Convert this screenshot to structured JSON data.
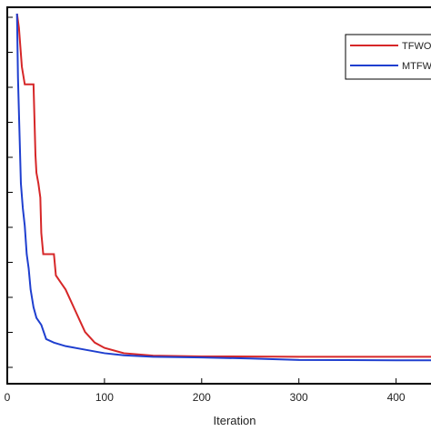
{
  "chart_data": {
    "type": "line",
    "title": "",
    "xlabel": "Iteration",
    "ylabel": "",
    "xlim": [
      0,
      460
    ],
    "ylim": [
      0,
      100
    ],
    "xticks": [
      0,
      100,
      200,
      300,
      400
    ],
    "grid": false,
    "legend": {
      "placement": "top-right"
    },
    "series": [
      {
        "name": "TFWO",
        "color": "#d62728",
        "points": [
          [
            10,
            100
          ],
          [
            12,
            96
          ],
          [
            15,
            85
          ],
          [
            18,
            80
          ],
          [
            27,
            80
          ],
          [
            29,
            60
          ],
          [
            30,
            55
          ],
          [
            32,
            52
          ],
          [
            34,
            48
          ],
          [
            35,
            38
          ],
          [
            37,
            32
          ],
          [
            48,
            32
          ],
          [
            50,
            26
          ],
          [
            55,
            24
          ],
          [
            60,
            22
          ],
          [
            65,
            19
          ],
          [
            70,
            16
          ],
          [
            75,
            13
          ],
          [
            80,
            10
          ],
          [
            90,
            7
          ],
          [
            100,
            5.5
          ],
          [
            120,
            4
          ],
          [
            150,
            3.3
          ],
          [
            200,
            3.1
          ],
          [
            300,
            3
          ],
          [
            400,
            3
          ],
          [
            460,
            3
          ]
        ]
      },
      {
        "name": "MTFWO",
        "color": "#1f3fcf",
        "points": [
          [
            10,
            100
          ],
          [
            11,
            82
          ],
          [
            12,
            72
          ],
          [
            14,
            52
          ],
          [
            16,
            45
          ],
          [
            18,
            40
          ],
          [
            20,
            32
          ],
          [
            22,
            28
          ],
          [
            24,
            22
          ],
          [
            27,
            17
          ],
          [
            30,
            14
          ],
          [
            35,
            12
          ],
          [
            40,
            8
          ],
          [
            48,
            7
          ],
          [
            60,
            6
          ],
          [
            80,
            5
          ],
          [
            100,
            4
          ],
          [
            120,
            3.4
          ],
          [
            150,
            3
          ],
          [
            200,
            2.8
          ],
          [
            250,
            2.5
          ],
          [
            300,
            2.1
          ],
          [
            400,
            2
          ],
          [
            460,
            2
          ]
        ]
      }
    ]
  }
}
